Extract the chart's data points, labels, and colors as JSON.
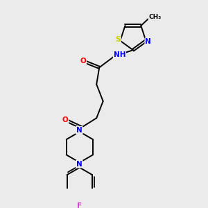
{
  "bg_color": "#ebebeb",
  "bond_color": "#000000",
  "atom_colors": {
    "N": "#0000ff",
    "O": "#ff0000",
    "S": "#cccc00",
    "F": "#cc44cc",
    "C": "#000000",
    "H": "#008888"
  },
  "bond_width": 1.4,
  "dbl_off": 0.055
}
